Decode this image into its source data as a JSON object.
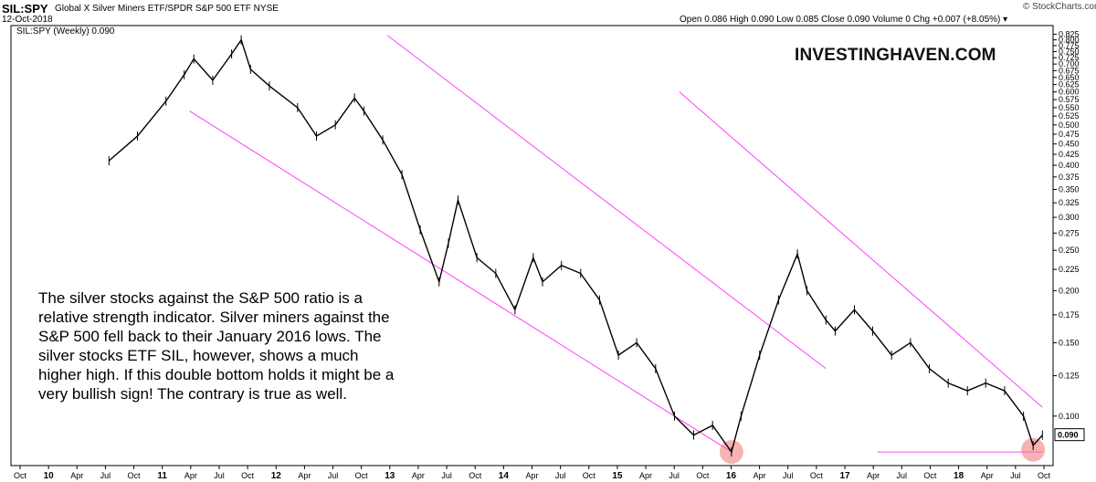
{
  "header": {
    "symbol": "SIL:SPY",
    "description": "Global X Silver Miners ETF/SPDR S&P 500 ETF",
    "exchange": "NYSE",
    "date": "12-Oct-2018",
    "ohlc": "Open 0.086  High 0.090  Low 0.085  Close 0.090  Volume 0  Chg +0.007 (+8.05%) ▾",
    "credit": "© StockCharts.com"
  },
  "watermark": "INVESTINGHAVEN.COM",
  "annotation": "The silver stocks against the S&P 500 ratio is a relative strength indicator. Silver miners against the S&P 500 fell back to their January 2016 lows. The silver stocks ETF SIL, however, shows a much higher high. If this double bottom holds it might be a very bullish sign! The contrary is true as well.",
  "chart_data": {
    "type": "line",
    "series": [
      {
        "name": "SIL:SPY (Weekly) 0.090",
        "x": [
          "2010-07",
          "2010-10",
          "2011-01",
          "2011-03",
          "2011-04",
          "2011-06",
          "2011-08",
          "2011-09",
          "2011-10",
          "2011-12",
          "2012-03",
          "2012-05",
          "2012-07",
          "2012-09",
          "2012-10",
          "2012-12",
          "2013-02",
          "2013-04",
          "2013-06",
          "2013-07",
          "2013-08",
          "2013-10",
          "2013-12",
          "2014-02",
          "2014-04",
          "2014-05",
          "2014-07",
          "2014-09",
          "2014-11",
          "2015-01",
          "2015-03",
          "2015-05",
          "2015-07",
          "2015-09",
          "2015-11",
          "2016-01",
          "2016-02",
          "2016-04",
          "2016-06",
          "2016-08",
          "2016-09",
          "2016-11",
          "2016-12",
          "2017-02",
          "2017-04",
          "2017-06",
          "2017-08",
          "2017-10",
          "2017-12",
          "2018-02",
          "2018-04",
          "2018-06",
          "2018-08",
          "2018-09",
          "2018-10"
        ],
        "values": [
          0.41,
          0.47,
          0.57,
          0.66,
          0.72,
          0.64,
          0.74,
          0.8,
          0.68,
          0.62,
          0.55,
          0.47,
          0.5,
          0.58,
          0.54,
          0.46,
          0.38,
          0.28,
          0.21,
          0.26,
          0.33,
          0.24,
          0.22,
          0.18,
          0.24,
          0.21,
          0.23,
          0.22,
          0.19,
          0.14,
          0.15,
          0.13,
          0.1,
          0.09,
          0.095,
          0.082,
          0.1,
          0.14,
          0.19,
          0.245,
          0.2,
          0.17,
          0.16,
          0.18,
          0.16,
          0.14,
          0.15,
          0.13,
          0.12,
          0.115,
          0.12,
          0.115,
          0.1,
          0.085,
          0.09
        ]
      }
    ],
    "y_ticks": [
      "0.825",
      "0.800",
      "0.775",
      "0.750",
      "0.725",
      "0.700",
      "0.675",
      "0.650",
      "0.625",
      "0.600",
      "0.575",
      "0.550",
      "0.525",
      "0.500",
      "0.475",
      "0.450",
      "0.425",
      "0.400",
      "0.375",
      "0.350",
      "0.325",
      "0.300",
      "0.275",
      "0.250",
      "0.225",
      "0.200",
      "0.175",
      "0.150",
      "0.125",
      "0.100"
    ],
    "last_value_label": "0.090",
    "x_ticks": [
      "Oct",
      "10",
      "Apr",
      "Jul",
      "Oct",
      "11",
      "Apr",
      "Jul",
      "Oct",
      "12",
      "Apr",
      "Jul",
      "Oct",
      "13",
      "Apr",
      "Jul",
      "Oct",
      "14",
      "Apr",
      "Jul",
      "Oct",
      "15",
      "Apr",
      "Jul",
      "Oct",
      "16",
      "Apr",
      "Jul",
      "Oct",
      "17",
      "Apr",
      "Jul",
      "Oct",
      "18",
      "Apr",
      "Jul",
      "Oct"
    ],
    "x_bold_ticks": [
      "10",
      "11",
      "12",
      "13",
      "14",
      "15",
      "16",
      "17",
      "18"
    ],
    "y_scale": "log",
    "ylim": [
      0.08,
      0.84
    ],
    "grid": false,
    "legend": "top-left",
    "colors": {
      "price": "#000000",
      "trendline": "#ff40ff",
      "marker": "#f08080"
    }
  }
}
